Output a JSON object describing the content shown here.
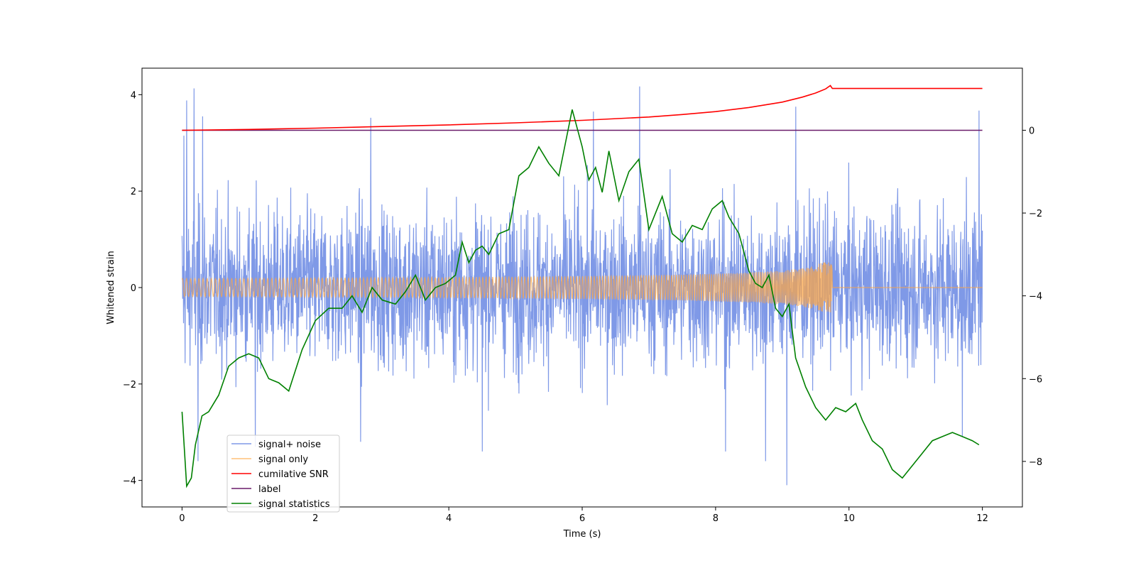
{
  "chart_data": {
    "type": "line",
    "xlabel": "Time (s)",
    "ylabel": "Whitened strain",
    "xlim": [
      -0.6,
      12.6
    ],
    "ylim_left": [
      -4.55,
      4.55
    ],
    "ylim_right": [
      -9.1,
      1.5
    ],
    "x_ticks": [
      0,
      2,
      4,
      6,
      8,
      10,
      12
    ],
    "y_ticks_left": [
      -4,
      -2,
      0,
      2,
      4
    ],
    "y_ticks_right": [
      -8,
      -6,
      -4,
      -2,
      0
    ],
    "legend_position": "lower-left",
    "series": [
      {
        "name": "signal+ noise",
        "axis": "left",
        "color": "#7893e6",
        "kind": "noise",
        "x_range": [
          0,
          12
        ],
        "typical_amplitude": [
          -2.6,
          2.9
        ],
        "spikes": [
          {
            "x": 0.03,
            "y": 3.15
          },
          {
            "x": 0.07,
            "y": 3.88
          },
          {
            "x": 0.18,
            "y": 4.13
          },
          {
            "x": 0.31,
            "y": 3.55
          },
          {
            "x": 2.83,
            "y": 3.52
          },
          {
            "x": 6.17,
            "y": 3.65
          },
          {
            "x": 6.86,
            "y": 4.17
          },
          {
            "x": 9.2,
            "y": 3.75
          },
          {
            "x": 11.95,
            "y": 3.67
          },
          {
            "x": 0.24,
            "y": -3.6
          },
          {
            "x": 1.1,
            "y": -3.3
          },
          {
            "x": 4.5,
            "y": -3.4
          },
          {
            "x": 8.15,
            "y": -3.4
          },
          {
            "x": 8.75,
            "y": -3.6
          },
          {
            "x": 9.07,
            "y": -4.1
          },
          {
            "x": 11.7,
            "y": -3.1
          },
          {
            "x": 2.68,
            "y": -3.2
          }
        ]
      },
      {
        "name": "signal only",
        "axis": "left",
        "color": "#ffa540",
        "kind": "chirp",
        "x_range": [
          0,
          12
        ],
        "merger_time": 9.75,
        "peak_amplitude": 0.52
      },
      {
        "name": "cumilative SNR",
        "axis": "right",
        "color": "#ff0000",
        "x": [
          0,
          1,
          2,
          3,
          4,
          5,
          6,
          7,
          7.5,
          8,
          8.5,
          9,
          9.3,
          9.5,
          9.65,
          9.72,
          9.75,
          10,
          11,
          12
        ],
        "values": [
          0.0,
          0.02,
          0.05,
          0.09,
          0.13,
          0.18,
          0.24,
          0.32,
          0.38,
          0.45,
          0.55,
          0.68,
          0.8,
          0.9,
          1.0,
          1.08,
          1.01,
          1.01,
          1.01,
          1.01
        ]
      },
      {
        "name": "label",
        "axis": "right",
        "color": "#6a1a6a",
        "x": [
          0,
          12
        ],
        "values": [
          0.0,
          0.0
        ]
      },
      {
        "name": "signal statistics",
        "axis": "right",
        "color": "#008000",
        "x": [
          0.0,
          0.07,
          0.14,
          0.2,
          0.3,
          0.4,
          0.55,
          0.7,
          0.85,
          1.0,
          1.15,
          1.3,
          1.45,
          1.6,
          1.8,
          2.0,
          2.2,
          2.4,
          2.55,
          2.7,
          2.85,
          3.0,
          3.2,
          3.35,
          3.5,
          3.65,
          3.8,
          3.95,
          4.1,
          4.2,
          4.3,
          4.4,
          4.5,
          4.6,
          4.75,
          4.9,
          5.05,
          5.2,
          5.35,
          5.5,
          5.65,
          5.75,
          5.85,
          6.0,
          6.1,
          6.2,
          6.3,
          6.4,
          6.55,
          6.7,
          6.85,
          7.0,
          7.1,
          7.2,
          7.35,
          7.5,
          7.65,
          7.8,
          7.95,
          8.1,
          8.2,
          8.35,
          8.5,
          8.6,
          8.7,
          8.8,
          8.9,
          9.0,
          9.1,
          9.2,
          9.35,
          9.5,
          9.65,
          9.8,
          9.95,
          10.1,
          10.2,
          10.35,
          10.5,
          10.65,
          10.8,
          10.95,
          11.1,
          11.25,
          11.4,
          11.55,
          11.7,
          11.85,
          11.95
        ],
        "values": [
          -6.8,
          -8.6,
          -8.4,
          -7.6,
          -6.9,
          -6.8,
          -6.4,
          -5.7,
          -5.5,
          -5.4,
          -5.5,
          -6.0,
          -6.1,
          -6.3,
          -5.3,
          -4.6,
          -4.3,
          -4.3,
          -4.0,
          -4.4,
          -3.8,
          -4.1,
          -4.2,
          -3.9,
          -3.5,
          -4.1,
          -3.8,
          -3.7,
          -3.5,
          -2.7,
          -3.2,
          -2.9,
          -2.8,
          -3.0,
          -2.5,
          -2.4,
          -1.1,
          -0.9,
          -0.4,
          -0.8,
          -1.1,
          -0.3,
          0.5,
          -0.4,
          -1.2,
          -0.9,
          -1.5,
          -0.5,
          -1.7,
          -1.0,
          -0.7,
          -2.4,
          -2.0,
          -1.6,
          -2.5,
          -2.7,
          -2.3,
          -2.4,
          -1.9,
          -1.7,
          -2.1,
          -2.5,
          -3.4,
          -3.7,
          -3.8,
          -3.5,
          -4.3,
          -4.5,
          -4.2,
          -5.5,
          -6.2,
          -6.7,
          -7.0,
          -6.7,
          -6.8,
          -6.6,
          -7.0,
          -7.5,
          -7.7,
          -8.2,
          -8.4,
          -8.1,
          -7.8,
          -7.5,
          -7.4,
          -7.3,
          -7.4,
          -7.5,
          -7.6
        ]
      }
    ]
  }
}
